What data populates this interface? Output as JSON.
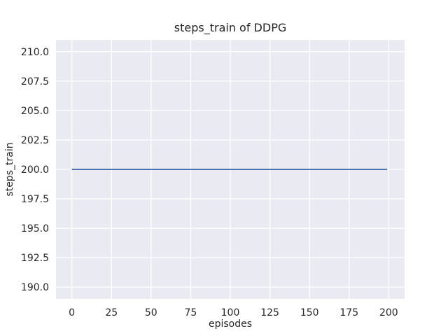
{
  "chart_data": {
    "type": "line",
    "title": "steps_train of DDPG",
    "xlabel": "episodes",
    "ylabel": "steps_train",
    "xlim": [
      -10,
      210
    ],
    "ylim": [
      189,
      211
    ],
    "xticks": [
      0,
      25,
      50,
      75,
      100,
      125,
      150,
      175,
      200
    ],
    "xtick_labels": [
      "0",
      "25",
      "50",
      "75",
      "100",
      "125",
      "150",
      "175",
      "200"
    ],
    "yticks": [
      190.0,
      192.5,
      195.0,
      197.5,
      200.0,
      202.5,
      205.0,
      207.5,
      210.0
    ],
    "ytick_labels": [
      "190.0",
      "192.5",
      "195.0",
      "197.5",
      "200.0",
      "202.5",
      "205.0",
      "207.5",
      "210.0"
    ],
    "grid": true,
    "legend": "none",
    "markers": "none",
    "series": [
      {
        "name": "steps_train",
        "color": "#4c72b0",
        "description": "constant flat line: steps_train = 200 for every episode from 0 to 199",
        "x": [
          0,
          199
        ],
        "y": [
          200,
          200
        ],
        "constant_value": 200
      }
    ],
    "colors": {
      "figure_background": "#ffffff",
      "axes_background": "#eaeaf2",
      "grid": "#ffffff",
      "text": "#262626",
      "line": "#4c72b0"
    }
  }
}
